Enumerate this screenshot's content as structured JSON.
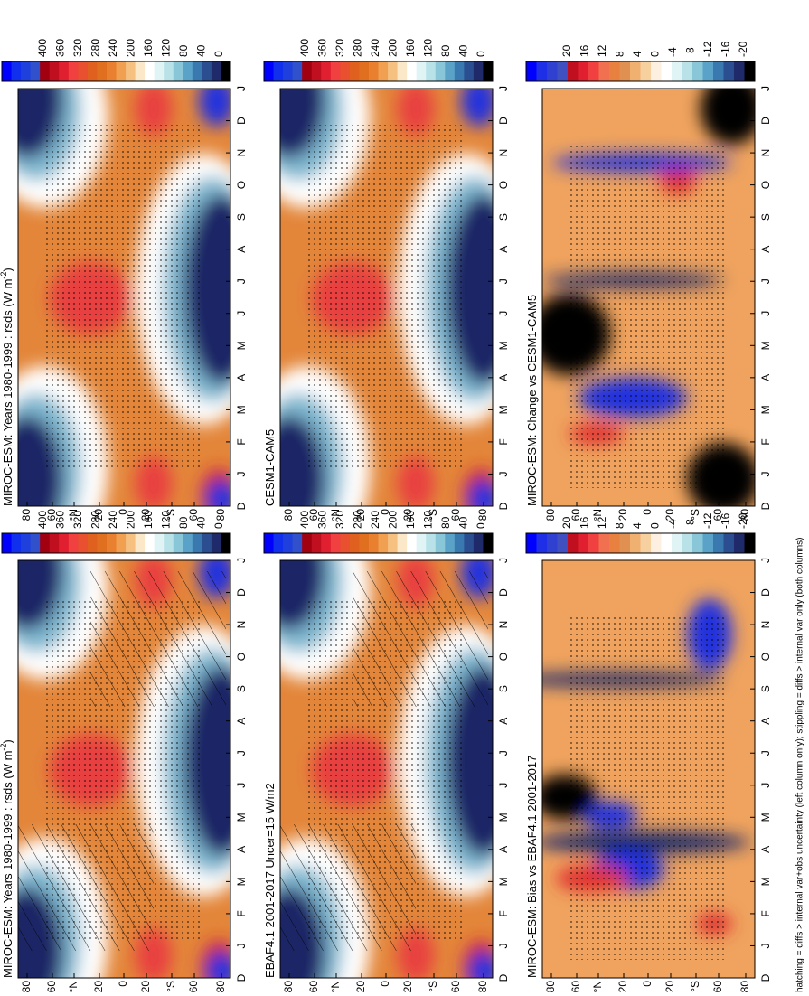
{
  "panels": [
    {
      "title": "MIROC-ESM: Years 1980-1999 : rsds (W m",
      "title_sup": "-2",
      "title_end": ")",
      "colorbar_labels": [
        400,
        360,
        320,
        280,
        240,
        200,
        160,
        120,
        80,
        40,
        0
      ],
      "months": [
        "D",
        "J",
        "F",
        "M",
        "A",
        "M",
        "J",
        "J",
        "A",
        "S",
        "O",
        "N",
        "D",
        "J"
      ],
      "latitudes": [
        "80",
        "60",
        "°N",
        "20",
        "0",
        "20",
        "°S",
        "60",
        "80"
      ]
    },
    {
      "title": "MIROC-ESM: Years 1980-1999 : rsds (W m",
      "title_sup": "-2",
      "title_end": ")",
      "colorbar_labels": [
        400,
        360,
        320,
        280,
        240,
        200,
        160,
        120,
        80,
        40,
        0
      ],
      "months": [
        "D",
        "J",
        "F",
        "M",
        "A",
        "M",
        "J",
        "J",
        "A",
        "S",
        "O",
        "N",
        "D",
        "J"
      ],
      "latitudes": [
        "80",
        "60",
        "°N",
        "20",
        "0",
        "20",
        "°S",
        "60",
        "80"
      ]
    },
    {
      "title": "EBAF4.1 2001-2017 Uncer=15 W/m2",
      "colorbar_labels": [
        400,
        360,
        320,
        280,
        240,
        200,
        160,
        120,
        80,
        40,
        0
      ],
      "months": [
        "D",
        "J",
        "F",
        "M",
        "A",
        "M",
        "J",
        "J",
        "A",
        "S",
        "O",
        "N",
        "D",
        "J"
      ],
      "latitudes": [
        "80",
        "60",
        "°N",
        "20",
        "0",
        "20",
        "°S",
        "60",
        "80"
      ]
    },
    {
      "title": "CESM1-CAM5",
      "colorbar_labels": [
        400,
        360,
        320,
        280,
        240,
        200,
        160,
        120,
        80,
        40,
        0
      ],
      "months": [
        "D",
        "J",
        "F",
        "M",
        "A",
        "M",
        "J",
        "J",
        "A",
        "S",
        "O",
        "N",
        "D",
        "J"
      ],
      "latitudes": [
        "80",
        "60",
        "°N",
        "20",
        "0",
        "20",
        "°S",
        "60",
        "80"
      ]
    },
    {
      "title": "MIROC-ESM: Bias vs EBAF4.1 2001-2017",
      "colorbar_labels": [
        20,
        16,
        12,
        8,
        4,
        0,
        -4,
        -8,
        -12,
        -16,
        -20
      ],
      "months": [
        "D",
        "J",
        "F",
        "M",
        "A",
        "M",
        "J",
        "J",
        "A",
        "S",
        "O",
        "N",
        "D",
        "J"
      ],
      "latitudes": [
        "80",
        "60",
        "°N",
        "20",
        "0",
        "20",
        "°S",
        "60",
        "80"
      ]
    },
    {
      "title": "MIROC-ESM: Change vs CESM1-CAM5",
      "colorbar_labels": [
        20,
        16,
        12,
        8,
        4,
        0,
        -4,
        -8,
        -12,
        -16,
        -20
      ],
      "months": [
        "D",
        "J",
        "F",
        "M",
        "A",
        "M",
        "J",
        "J",
        "A",
        "S",
        "O",
        "N",
        "D",
        "J"
      ],
      "latitudes": [
        "80",
        "60",
        "°N",
        "20",
        "0",
        "20",
        "°S",
        "60",
        "80"
      ]
    }
  ],
  "footnote": "hatching = diffs > internal var+obs uncertainty (left column only); stippling = diffs > internal var only (both columns)"
}
